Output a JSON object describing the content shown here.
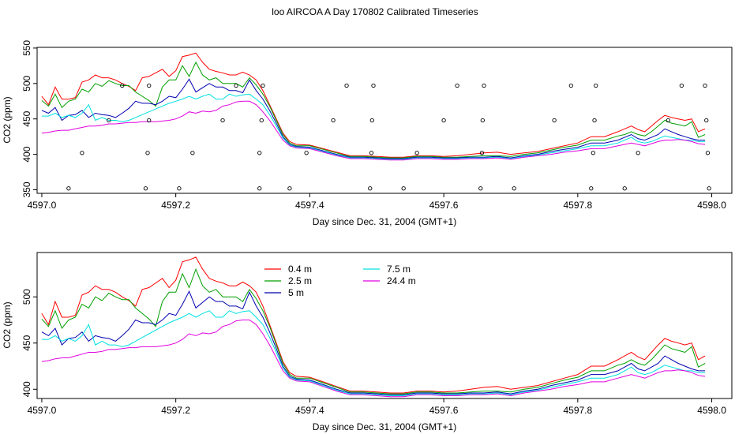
{
  "page_title": "loo AIRCOA A  Day 170802  Calibrated Timeseries",
  "chart_data": [
    {
      "type": "line",
      "title": "",
      "xlabel": "Day since Dec. 31, 2004 (GMT+1)",
      "ylabel": "CO2 (ppm)",
      "xlim": [
        4596.993,
        4598.03
      ],
      "ylim": [
        345,
        551
      ],
      "x_ticks": [
        4597.0,
        4597.2,
        4597.4,
        4597.6,
        4597.8,
        4598.0
      ],
      "x_tick_labels": [
        "4597.0",
        "4597.2",
        "4597.4",
        "4597.6",
        "4597.8",
        "4598.0"
      ],
      "y_ticks": [
        350,
        400,
        450,
        500,
        550
      ],
      "y_tick_labels": [
        "350",
        "400",
        "450",
        "500",
        "550"
      ],
      "legend": null,
      "series": [
        {
          "color": "#ff0000",
          "x": [
            4597.0,
            4597.01,
            4597.02,
            4597.03,
            4597.04,
            4597.05,
            4597.06,
            4597.07,
            4597.08,
            4597.09,
            4597.1,
            4597.11,
            4597.12,
            4597.13,
            4597.14,
            4597.15,
            4597.16,
            4597.17,
            4597.18,
            4597.19,
            4597.2,
            4597.21,
            4597.22,
            4597.23,
            4597.24,
            4597.25,
            4597.26,
            4597.27,
            4597.28,
            4597.29,
            4597.3,
            4597.31,
            4597.32,
            4597.33,
            4597.34,
            4597.35,
            4597.36,
            4597.37,
            4597.38,
            4597.4,
            4597.42,
            4597.44,
            4597.46,
            4597.48,
            4597.5,
            4597.52,
            4597.54,
            4597.56,
            4597.58,
            4597.6,
            4597.62,
            4597.64,
            4597.66,
            4597.68,
            4597.7,
            4597.72,
            4597.74,
            4597.76,
            4597.78,
            4597.8,
            4597.82,
            4597.84,
            4597.86,
            4597.87,
            4597.88,
            4597.89,
            4597.9,
            4597.91,
            4597.92,
            4597.93,
            4597.94,
            4597.95,
            4597.96,
            4597.97,
            4597.98,
            4597.99
          ],
          "y": [
            482,
            470,
            495,
            478,
            478,
            480,
            502,
            505,
            512,
            508,
            508,
            505,
            500,
            496,
            490,
            508,
            510,
            515,
            520,
            510,
            518,
            538,
            540,
            543,
            530,
            520,
            517,
            515,
            512,
            512,
            516,
            512,
            505,
            490,
            470,
            450,
            430,
            418,
            414,
            413,
            408,
            403,
            398,
            398,
            397,
            396,
            396,
            398,
            398,
            397,
            398,
            400,
            402,
            403,
            400,
            402,
            404,
            408,
            412,
            416,
            425,
            425,
            432,
            436,
            440,
            435,
            432,
            440,
            448,
            455,
            452,
            450,
            448,
            450,
            432,
            436
          ]
        },
        {
          "color": "#00a000",
          "x": [
            4597.0,
            4597.01,
            4597.02,
            4597.03,
            4597.04,
            4597.05,
            4597.06,
            4597.07,
            4597.08,
            4597.09,
            4597.1,
            4597.11,
            4597.12,
            4597.13,
            4597.14,
            4597.15,
            4597.16,
            4597.17,
            4597.18,
            4597.19,
            4597.2,
            4597.21,
            4597.22,
            4597.23,
            4597.24,
            4597.25,
            4597.26,
            4597.27,
            4597.28,
            4597.29,
            4597.3,
            4597.31,
            4597.32,
            4597.33,
            4597.34,
            4597.35,
            4597.36,
            4597.37,
            4597.38,
            4597.4,
            4597.42,
            4597.44,
            4597.46,
            4597.48,
            4597.5,
            4597.52,
            4597.54,
            4597.56,
            4597.58,
            4597.6,
            4597.62,
            4597.64,
            4597.66,
            4597.68,
            4597.7,
            4597.72,
            4597.74,
            4597.76,
            4597.78,
            4597.8,
            4597.82,
            4597.84,
            4597.86,
            4597.87,
            4597.88,
            4597.89,
            4597.9,
            4597.91,
            4597.92,
            4597.93,
            4597.94,
            4597.95,
            4597.96,
            4597.97,
            4597.98,
            4597.99
          ],
          "y": [
            476,
            468,
            485,
            466,
            475,
            478,
            492,
            488,
            500,
            496,
            504,
            500,
            497,
            497,
            488,
            482,
            476,
            468,
            495,
            505,
            505,
            525,
            510,
            530,
            512,
            505,
            508,
            500,
            500,
            500,
            495,
            508,
            498,
            485,
            468,
            448,
            428,
            416,
            412,
            412,
            407,
            402,
            397,
            397,
            396,
            395,
            395,
            397,
            397,
            396,
            396,
            397,
            398,
            398,
            397,
            400,
            402,
            406,
            410,
            413,
            420,
            420,
            426,
            428,
            432,
            428,
            426,
            432,
            440,
            448,
            444,
            442,
            440,
            446,
            424,
            428
          ]
        },
        {
          "color": "#0000b0",
          "x": [
            4597.0,
            4597.01,
            4597.02,
            4597.03,
            4597.04,
            4597.05,
            4597.06,
            4597.07,
            4597.08,
            4597.09,
            4597.1,
            4597.11,
            4597.12,
            4597.13,
            4597.14,
            4597.15,
            4597.16,
            4597.17,
            4597.18,
            4597.19,
            4597.2,
            4597.21,
            4597.22,
            4597.23,
            4597.24,
            4597.25,
            4597.26,
            4597.27,
            4597.28,
            4597.29,
            4597.3,
            4597.31,
            4597.32,
            4597.33,
            4597.34,
            4597.35,
            4597.36,
            4597.37,
            4597.38,
            4597.4,
            4597.42,
            4597.44,
            4597.46,
            4597.48,
            4597.5,
            4597.52,
            4597.54,
            4597.56,
            4597.58,
            4597.6,
            4597.62,
            4597.64,
            4597.66,
            4597.68,
            4597.7,
            4597.72,
            4597.74,
            4597.76,
            4597.78,
            4597.8,
            4597.82,
            4597.84,
            4597.86,
            4597.87,
            4597.88,
            4597.89,
            4597.9,
            4597.91,
            4597.92,
            4597.93,
            4597.94,
            4597.95,
            4597.96,
            4597.97,
            4597.98,
            4597.99
          ],
          "y": [
            462,
            458,
            466,
            448,
            455,
            456,
            462,
            452,
            458,
            456,
            455,
            452,
            458,
            465,
            475,
            472,
            472,
            470,
            475,
            482,
            480,
            492,
            506,
            488,
            494,
            500,
            495,
            495,
            490,
            490,
            487,
            505,
            490,
            478,
            462,
            444,
            425,
            414,
            411,
            410,
            405,
            400,
            396,
            396,
            395,
            394,
            394,
            396,
            396,
            395,
            395,
            396,
            396,
            397,
            395,
            398,
            400,
            404,
            407,
            410,
            416,
            416,
            420,
            424,
            428,
            422,
            420,
            424,
            428,
            436,
            432,
            428,
            425,
            422,
            420,
            420
          ]
        },
        {
          "color": "#00e0e0",
          "x": [
            4597.0,
            4597.01,
            4597.02,
            4597.03,
            4597.04,
            4597.05,
            4597.06,
            4597.07,
            4597.08,
            4597.09,
            4597.1,
            4597.11,
            4597.12,
            4597.13,
            4597.14,
            4597.15,
            4597.16,
            4597.17,
            4597.18,
            4597.19,
            4597.2,
            4597.21,
            4597.22,
            4597.23,
            4597.24,
            4597.25,
            4597.26,
            4597.27,
            4597.28,
            4597.29,
            4597.3,
            4597.31,
            4597.32,
            4597.33,
            4597.34,
            4597.35,
            4597.36,
            4597.37,
            4597.38,
            4597.4,
            4597.42,
            4597.44,
            4597.46,
            4597.48,
            4597.5,
            4597.52,
            4597.54,
            4597.56,
            4597.58,
            4597.6,
            4597.62,
            4597.64,
            4597.66,
            4597.68,
            4597.7,
            4597.72,
            4597.74,
            4597.76,
            4597.78,
            4597.8,
            4597.82,
            4597.84,
            4597.86,
            4597.87,
            4597.88,
            4597.89,
            4597.9,
            4597.91,
            4597.92,
            4597.93,
            4597.94,
            4597.95,
            4597.96,
            4597.97,
            4597.98,
            4597.99
          ],
          "y": [
            454,
            454,
            458,
            452,
            455,
            452,
            458,
            470,
            448,
            452,
            448,
            448,
            446,
            448,
            452,
            456,
            460,
            464,
            468,
            472,
            475,
            478,
            482,
            478,
            482,
            485,
            478,
            478,
            485,
            482,
            484,
            485,
            478,
            470,
            456,
            440,
            423,
            413,
            410,
            409,
            404,
            399,
            395,
            395,
            394,
            393,
            393,
            395,
            395,
            394,
            394,
            395,
            395,
            396,
            394,
            397,
            399,
            402,
            405,
            408,
            412,
            412,
            416,
            420,
            424,
            418,
            416,
            418,
            422,
            426,
            424,
            422,
            420,
            420,
            418,
            418
          ]
        },
        {
          "color": "#e000e0",
          "x": [
            4597.0,
            4597.01,
            4597.02,
            4597.03,
            4597.04,
            4597.05,
            4597.06,
            4597.07,
            4597.08,
            4597.09,
            4597.1,
            4597.11,
            4597.12,
            4597.13,
            4597.14,
            4597.15,
            4597.16,
            4597.17,
            4597.18,
            4597.19,
            4597.2,
            4597.21,
            4597.22,
            4597.23,
            4597.24,
            4597.25,
            4597.26,
            4597.27,
            4597.28,
            4597.29,
            4597.3,
            4597.31,
            4597.32,
            4597.33,
            4597.34,
            4597.35,
            4597.36,
            4597.37,
            4597.38,
            4597.4,
            4597.42,
            4597.44,
            4597.46,
            4597.48,
            4597.5,
            4597.52,
            4597.54,
            4597.56,
            4597.58,
            4597.6,
            4597.62,
            4597.64,
            4597.66,
            4597.68,
            4597.7,
            4597.72,
            4597.74,
            4597.76,
            4597.78,
            4597.8,
            4597.82,
            4597.84,
            4597.86,
            4597.87,
            4597.88,
            4597.89,
            4597.9,
            4597.91,
            4597.92,
            4597.93,
            4597.94,
            4597.95,
            4597.96,
            4597.97,
            4597.98,
            4597.99
          ],
          "y": [
            430,
            431,
            433,
            434,
            434,
            436,
            438,
            440,
            440,
            441,
            443,
            443,
            444,
            445,
            445,
            446,
            446,
            446,
            447,
            448,
            450,
            454,
            460,
            458,
            461,
            460,
            462,
            468,
            470,
            474,
            475,
            475,
            470,
            460,
            448,
            434,
            420,
            412,
            409,
            408,
            403,
            398,
            394,
            394,
            393,
            392,
            392,
            394,
            394,
            393,
            393,
            394,
            394,
            395,
            393,
            396,
            398,
            400,
            403,
            405,
            408,
            408,
            412,
            414,
            416,
            414,
            412,
            415,
            418,
            420,
            420,
            421,
            420,
            418,
            415,
            414
          ]
        }
      ],
      "reference_points": {
        "x": [
          4597.04,
          4597.06,
          4597.1,
          4597.12,
          4597.155,
          4597.158,
          4597.16,
          4597.16,
          4597.205,
          4597.225,
          4597.27,
          4597.29,
          4597.325,
          4597.325,
          4597.328,
          4597.33,
          4597.37,
          4597.395,
          4597.435,
          4597.455,
          4597.49,
          4597.492,
          4597.493,
          4597.495,
          4597.54,
          4597.56,
          4597.6,
          4597.62,
          4597.655,
          4597.657,
          4597.658,
          4597.66,
          4597.705,
          4597.765,
          4597.79,
          4597.82,
          4597.823,
          4597.825,
          4597.827,
          4597.87,
          4597.89,
          4597.935,
          4597.955,
          4597.99,
          4597.992,
          4597.994,
          4597.996
        ],
        "y": [
          352,
          402,
          448,
          497,
          352,
          402,
          448,
          497,
          352,
          402,
          448,
          497,
          352,
          402,
          448,
          497,
          352,
          402,
          448,
          497,
          352,
          402,
          448,
          497,
          352,
          402,
          448,
          497,
          352,
          402,
          448,
          497,
          352,
          448,
          497,
          352,
          402,
          448,
          497,
          352,
          402,
          448,
          497,
          497,
          448,
          402,
          352
        ]
      }
    },
    {
      "type": "line",
      "title": "",
      "xlabel": "Day since Dec. 31, 2004 (GMT+1)",
      "ylabel": "CO2 (ppm)",
      "xlim": [
        4596.993,
        4598.03
      ],
      "ylim": [
        390,
        548
      ],
      "x_ticks": [
        4597.0,
        4597.2,
        4597.4,
        4597.6,
        4597.8,
        4598.0
      ],
      "x_tick_labels": [
        "4597.0",
        "4597.2",
        "4597.4",
        "4597.6",
        "4597.8",
        "4598.0"
      ],
      "y_ticks": [
        400,
        450,
        500
      ],
      "y_tick_labels": [
        "400",
        "450",
        "500"
      ],
      "legend": "top-center",
      "legend_entries": [
        {
          "name": "0.4 m",
          "color": "#ff0000"
        },
        {
          "name": "2.5 m",
          "color": "#00a000"
        },
        {
          "name": "5 m",
          "color": "#0000b0"
        },
        {
          "name": "7.5 m",
          "color": "#00e0e0"
        },
        {
          "name": "24.4 m",
          "color": "#e000e0"
        }
      ],
      "series_ref": "same as top chart series in order 0.4 m, 2.5 m, 5 m, 7.5 m, 24.4 m"
    }
  ]
}
